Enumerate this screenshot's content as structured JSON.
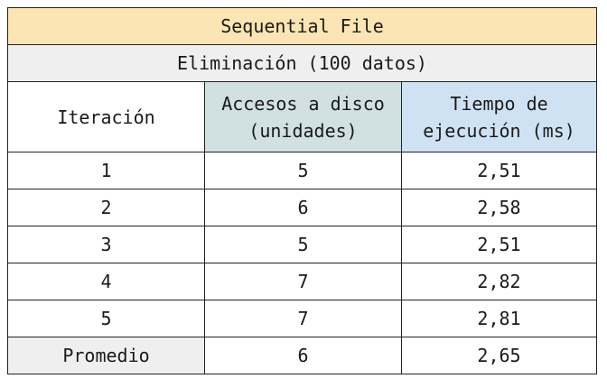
{
  "table": {
    "title": "Sequential File",
    "subtitle": "Eliminación (100 datos)",
    "headers": {
      "iteration": "Iteración",
      "accesses_line1": "Accesos a disco",
      "accesses_line2": "(unidades)",
      "time_line1": "Tiempo de",
      "time_line2": "ejecución (ms)"
    },
    "rows": [
      {
        "iteration": "1",
        "accesses": "5",
        "time": "2,51"
      },
      {
        "iteration": "2",
        "accesses": "6",
        "time": "2,58"
      },
      {
        "iteration": "3",
        "accesses": "5",
        "time": "2,51"
      },
      {
        "iteration": "4",
        "accesses": "7",
        "time": "2,82"
      },
      {
        "iteration": "5",
        "accesses": "7",
        "time": "2,81"
      }
    ],
    "average": {
      "label": "Promedio",
      "accesses": "6",
      "time": "2,65"
    }
  },
  "colors": {
    "title_bg": "#fce5b4",
    "subtitle_bg": "#efefef",
    "accesses_header_bg": "#d0e0e3",
    "time_header_bg": "#cfe2f3",
    "average_label_bg": "#efefef"
  }
}
